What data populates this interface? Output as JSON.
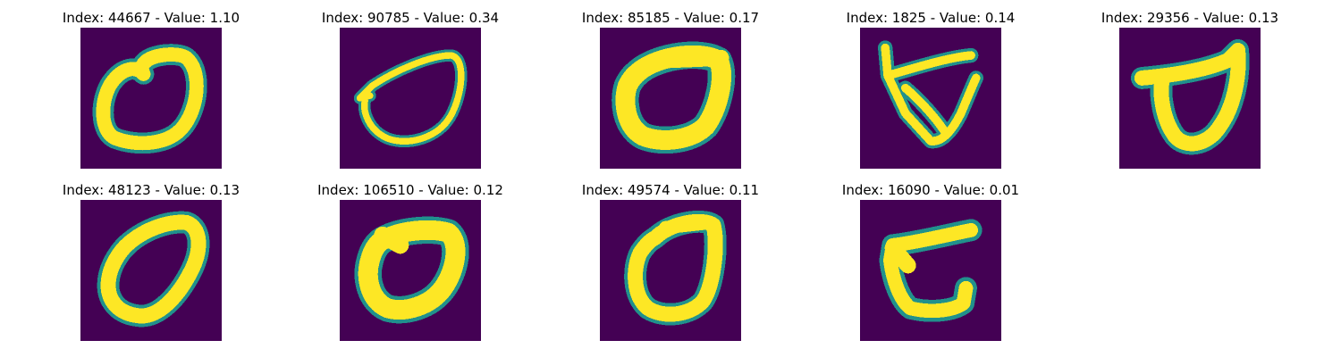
{
  "colormap": {
    "background": "#440154",
    "low": "#3b528b",
    "mid": "#21918c",
    "high": "#5ec962",
    "peak": "#fde725"
  },
  "panels": [
    {
      "title": "Index: 44667 - Value: 1.10"
    },
    {
      "title": "Index: 90785 - Value: 0.34"
    },
    {
      "title": "Index: 85185 - Value: 0.17"
    },
    {
      "title": "Index: 1825 - Value: 0.14"
    },
    {
      "title": "Index: 29356 - Value: 0.13"
    },
    {
      "title": "Index: 48123 - Value: 0.13"
    },
    {
      "title": "Index: 106510 - Value: 0.12"
    },
    {
      "title": "Index: 49574 - Value: 0.11"
    },
    {
      "title": "Index: 16090 - Value: 0.01"
    }
  ]
}
